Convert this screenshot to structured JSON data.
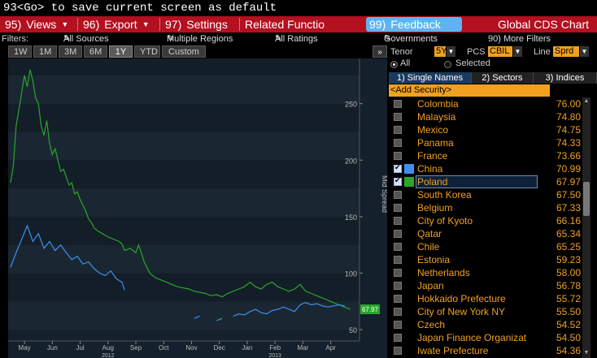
{
  "command_line": "93<Go> to save current screen as default",
  "menu": {
    "views": {
      "num": "95)",
      "label": "Views"
    },
    "export": {
      "num": "96)",
      "label": "Export"
    },
    "settings": {
      "num": "97)",
      "label": "Settings"
    },
    "related": {
      "label": "Related Functio"
    },
    "feedback": {
      "num": "99)",
      "label": "Feedback"
    },
    "screen_title": "Global CDS Chart"
  },
  "filters": {
    "label": "Filters:",
    "all_sources": "All Sources",
    "multiple_regions": "Multiple Regions",
    "all_ratings": "All Ratings",
    "governments": "Governments",
    "more_filters": "90) More Filters"
  },
  "range_tabs": [
    "1W",
    "1M",
    "3M",
    "6M",
    "1Y",
    "YTD",
    "Custom"
  ],
  "range_selected": "1Y",
  "collapse_icon": "double-chevron-right",
  "controls": {
    "tenor_label": "Tenor",
    "tenor_value": "5Y",
    "pcs_label": "PCS",
    "pcs_value": "CBIL",
    "line_label": "Line",
    "line_value": "Sprd",
    "all_label": "All",
    "selected_label": "Selected"
  },
  "list_tabs": [
    "1) Single Names",
    "2) Sectors",
    "3) Indices"
  ],
  "add_security": "<Add Security>",
  "rows": [
    {
      "name": "Colombia",
      "value": "76.00",
      "checked": false
    },
    {
      "name": "Malaysia",
      "value": "74.80",
      "checked": false
    },
    {
      "name": "Mexico",
      "value": "74.75",
      "checked": false
    },
    {
      "name": "Panama",
      "value": "74.33",
      "checked": false
    },
    {
      "name": "France",
      "value": "73.66",
      "checked": false
    },
    {
      "name": "China",
      "value": "70.99",
      "checked": true,
      "color": "#3d8ff0"
    },
    {
      "name": "Poland",
      "value": "67.97",
      "checked": true,
      "color": "#2aa52a"
    },
    {
      "name": "South Korea",
      "value": "67.50",
      "checked": false
    },
    {
      "name": "Belgium",
      "value": "67.33",
      "checked": false
    },
    {
      "name": "City of Kyoto",
      "value": "66.16",
      "checked": false
    },
    {
      "name": "Qatar",
      "value": "65.34",
      "checked": false
    },
    {
      "name": "Chile",
      "value": "65.25",
      "checked": false
    },
    {
      "name": "Estonia",
      "value": "59.23",
      "checked": false
    },
    {
      "name": "Netherlands",
      "value": "58.00",
      "checked": false
    },
    {
      "name": "Japan",
      "value": "56.78",
      "checked": false
    },
    {
      "name": "Hokkaido Prefecture",
      "value": "55.72",
      "checked": false
    },
    {
      "name": "City of New York NY",
      "value": "55.50",
      "checked": false
    },
    {
      "name": "Czech",
      "value": "54.52",
      "checked": false
    },
    {
      "name": "Japan Finance Organizat",
      "value": "54.50",
      "checked": false
    },
    {
      "name": "Iwate Prefecture",
      "value": "54.36",
      "checked": false
    }
  ],
  "highlight_row": "Poland",
  "chart_data": {
    "type": "line",
    "ylabel": "Mid Spread",
    "ylim": [
      40,
      290
    ],
    "yticks": [
      50,
      100,
      150,
      200,
      250
    ],
    "x": [
      "May",
      "Jun",
      "Jul",
      "Aug",
      "Sep",
      "Oct",
      "Nov",
      "Dec",
      "Jan",
      "Feb",
      "Mar",
      "Apr"
    ],
    "year_labels": [
      {
        "label": "2012",
        "under": "Aug"
      },
      {
        "label": "2013",
        "under": "Feb"
      }
    ],
    "last_value_label": {
      "text": "67.97",
      "color": "#2aa52a"
    },
    "series": [
      {
        "name": "Poland",
        "color": "#2aa52a",
        "values": [
          [
            0,
            180
          ],
          [
            0.1,
            195
          ],
          [
            0.2,
            230
          ],
          [
            0.3,
            245
          ],
          [
            0.4,
            260
          ],
          [
            0.5,
            275
          ],
          [
            0.6,
            265
          ],
          [
            0.7,
            280
          ],
          [
            0.8,
            270
          ],
          [
            0.9,
            255
          ],
          [
            1.0,
            250
          ],
          [
            1.1,
            230
          ],
          [
            1.2,
            222
          ],
          [
            1.3,
            235
          ],
          [
            1.4,
            215
          ],
          [
            1.5,
            205
          ],
          [
            1.6,
            210
          ],
          [
            1.7,
            200
          ],
          [
            1.8,
            190
          ],
          [
            1.9,
            192
          ],
          [
            2.0,
            185
          ],
          [
            2.1,
            178
          ],
          [
            2.2,
            180
          ],
          [
            2.3,
            170
          ],
          [
            2.4,
            172
          ],
          [
            2.5,
            165
          ],
          [
            2.6,
            160
          ],
          [
            2.7,
            155
          ],
          [
            2.8,
            148
          ],
          [
            2.9,
            145
          ],
          [
            3.0,
            140
          ],
          [
            3.1,
            138
          ],
          [
            3.3,
            135
          ],
          [
            3.5,
            132
          ],
          [
            3.7,
            130
          ],
          [
            3.9,
            128
          ],
          [
            4.0,
            126
          ],
          [
            4.1,
            120
          ],
          [
            4.3,
            122
          ],
          [
            4.5,
            118
          ],
          [
            4.6,
            125
          ],
          [
            4.8,
            110
          ],
          [
            5.0,
            100
          ],
          [
            5.2,
            96
          ],
          [
            5.4,
            94
          ],
          [
            5.6,
            92
          ],
          [
            5.8,
            90
          ],
          [
            6.0,
            88
          ],
          [
            6.2,
            87
          ],
          [
            6.4,
            86
          ],
          [
            6.6,
            84
          ],
          [
            6.8,
            83
          ],
          [
            7.0,
            82
          ],
          [
            7.2,
            80
          ],
          [
            7.4,
            81
          ],
          [
            7.6,
            79
          ],
          [
            7.8,
            82
          ],
          [
            8.0,
            84
          ],
          [
            8.2,
            86
          ],
          [
            8.4,
            88
          ],
          [
            8.6,
            92
          ],
          [
            8.8,
            88
          ],
          [
            9.0,
            86
          ],
          [
            9.2,
            90
          ],
          [
            9.4,
            92
          ],
          [
            9.6,
            88
          ],
          [
            9.8,
            86
          ],
          [
            10.0,
            84
          ],
          [
            10.2,
            86
          ],
          [
            10.4,
            90
          ],
          [
            10.6,
            84
          ],
          [
            10.8,
            82
          ],
          [
            11.0,
            80
          ],
          [
            11.2,
            78
          ],
          [
            11.4,
            76
          ],
          [
            11.6,
            74
          ],
          [
            11.8,
            72
          ],
          [
            12.0,
            70
          ],
          [
            12.1,
            69
          ],
          [
            12.2,
            68
          ]
        ]
      },
      {
        "name": "China",
        "color": "#3d8ff0",
        "values": [
          [
            0,
            105
          ],
          [
            0.2,
            118
          ],
          [
            0.4,
            130
          ],
          [
            0.6,
            142
          ],
          [
            0.8,
            128
          ],
          [
            1.0,
            135
          ],
          [
            1.2,
            122
          ],
          [
            1.4,
            128
          ],
          [
            1.6,
            120
          ],
          [
            1.8,
            125
          ],
          [
            2.0,
            118
          ],
          [
            2.2,
            112
          ],
          [
            2.4,
            115
          ],
          [
            2.6,
            108
          ],
          [
            2.8,
            110
          ],
          [
            3.0,
            104
          ],
          [
            3.2,
            100
          ],
          [
            3.4,
            98
          ],
          [
            3.6,
            102
          ],
          [
            3.8,
            95
          ],
          [
            4.0,
            92
          ],
          [
            4.1,
            85
          ],
          null,
          [
            4.8,
            90
          ],
          null,
          [
            6.6,
            60
          ],
          [
            6.8,
            62
          ],
          null,
          [
            7.4,
            58
          ],
          [
            7.6,
            60
          ],
          null,
          [
            8.0,
            62
          ],
          [
            8.2,
            64
          ],
          [
            8.4,
            63
          ],
          [
            8.6,
            66
          ],
          [
            8.8,
            68
          ],
          [
            9.0,
            65
          ],
          [
            9.2,
            64
          ],
          [
            9.4,
            67
          ],
          [
            9.6,
            68
          ],
          [
            9.8,
            70
          ],
          [
            10.0,
            68
          ],
          [
            10.2,
            66
          ],
          [
            10.4,
            72
          ],
          [
            10.6,
            74
          ],
          [
            10.8,
            72
          ],
          [
            11.0,
            73
          ],
          [
            11.2,
            71
          ],
          [
            11.4,
            70
          ],
          [
            11.6,
            71
          ],
          [
            11.8,
            72
          ],
          [
            12.0,
            71
          ]
        ]
      }
    ]
  }
}
